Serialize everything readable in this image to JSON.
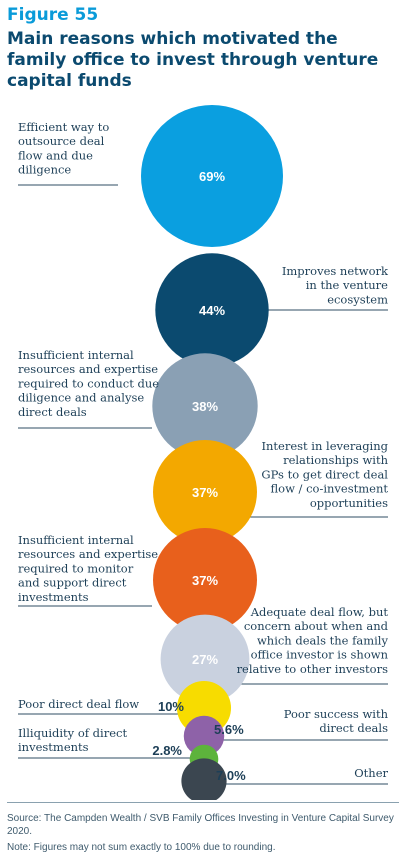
{
  "figure_label": "Figure 55",
  "title": "Main reasons which motivated the family office to invest through venture capital funds",
  "source": "Source: The Campden Wealth / SVB Family Offices Investing in Venture Capital Survey 2020.",
  "note": "Note: Figures may not sum exactly to 100% due to rounding.",
  "colors": {
    "lightblue": "#0a9fe0",
    "navy": "#0b4a6f",
    "slate": "#8aa0b4",
    "amber": "#f3a800",
    "orange": "#e8601c",
    "lavender": "#c9d1df",
    "yellow": "#f7dc00",
    "purple": "#8e62a8",
    "green": "#5db33c",
    "darkgray": "#3b4650",
    "text": "#1d3f57",
    "line": "#2f4d63"
  },
  "chart_data": {
    "type": "bubble",
    "title": "Main reasons which motivated the family office to invest through venture capital funds",
    "unit": "%",
    "values": [
      {
        "label": "Efficient way to outsource deal flow and due diligence",
        "value": 69,
        "value_label": "69%",
        "color": "lightblue"
      },
      {
        "label": "Improves network in the venture ecosystem",
        "value": 44,
        "value_label": "44%",
        "color": "navy"
      },
      {
        "label": "Insufficient internal resources and expertise required to conduct due diligence and analyse direct deals",
        "value": 38,
        "value_label": "38%",
        "color": "slate"
      },
      {
        "label": "Interest in leveraging relationships with GPs to get direct deal flow / co-investment opportunities",
        "value": 37,
        "value_label": "37%",
        "color": "amber"
      },
      {
        "label": "Insufficient internal resources and expertise required to monitor and support direct investments",
        "value": 37,
        "value_label": "37%",
        "color": "orange"
      },
      {
        "label": "Adequate deal flow, but concern about when and which deals the family office investor is shown relative to other investors",
        "value": 27,
        "value_label": "27%",
        "color": "lavender"
      },
      {
        "label": "Poor direct deal flow",
        "value": 10,
        "value_label": "10%",
        "color": "yellow"
      },
      {
        "label": "Poor success with direct deals",
        "value": 5.6,
        "value_label": "5.6%",
        "color": "purple"
      },
      {
        "label": "Illiquidity of direct investments",
        "value": 2.8,
        "value_label": "2.8%",
        "color": "green"
      },
      {
        "label": "Other",
        "value": 7.0,
        "value_label": "7.0%",
        "color": "darkgray"
      }
    ]
  }
}
